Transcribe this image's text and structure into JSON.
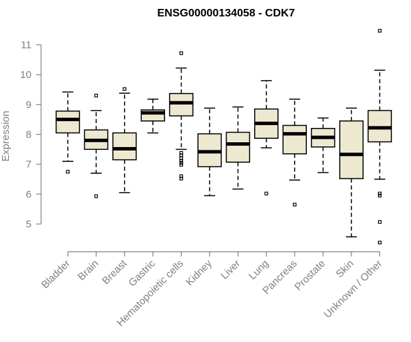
{
  "chart_data": {
    "type": "box",
    "title": "ENSG00000134058 - CDK7",
    "ylabel": "Expression",
    "ylim": [
      4.1,
      11.5
    ],
    "yticks": [
      5,
      6,
      7,
      8,
      9,
      10,
      11
    ],
    "categories": [
      "Bladder",
      "Brain",
      "Breast",
      "Gastric",
      "Hematopoietic cells",
      "Kidney",
      "Liver",
      "Lung",
      "Pancreas",
      "Prostate",
      "Skin",
      "Unknown / Other"
    ],
    "box_fill": "#ede8d0",
    "boxes": [
      {
        "q1": 8.05,
        "median": 8.5,
        "q3": 8.78,
        "whisker_low": 7.1,
        "whisker_high": 9.42,
        "outliers": [
          6.75
        ]
      },
      {
        "q1": 7.5,
        "median": 7.8,
        "q3": 8.15,
        "whisker_low": 6.7,
        "whisker_high": 8.8,
        "outliers": [
          9.3,
          5.93
        ]
      },
      {
        "q1": 7.15,
        "median": 7.52,
        "q3": 8.05,
        "whisker_low": 6.05,
        "whisker_high": 9.38,
        "outliers": [
          9.52
        ]
      },
      {
        "q1": 8.45,
        "median": 8.72,
        "q3": 8.82,
        "whisker_low": 8.05,
        "whisker_high": 9.18,
        "outliers": []
      },
      {
        "q1": 8.62,
        "median": 9.06,
        "q3": 9.37,
        "whisker_low": 7.5,
        "whisker_high": 10.22,
        "outliers": [
          10.72,
          7.38,
          7.3,
          7.2,
          7.12,
          7.05,
          6.98,
          6.6,
          6.52
        ]
      },
      {
        "q1": 6.92,
        "median": 7.42,
        "q3": 8.02,
        "whisker_low": 5.95,
        "whisker_high": 8.88,
        "outliers": []
      },
      {
        "q1": 7.07,
        "median": 7.68,
        "q3": 8.07,
        "whisker_low": 6.17,
        "whisker_high": 8.92,
        "outliers": []
      },
      {
        "q1": 7.87,
        "median": 8.37,
        "q3": 8.85,
        "whisker_low": 7.55,
        "whisker_high": 9.8,
        "outliers": [
          6.02
        ]
      },
      {
        "q1": 7.35,
        "median": 8.02,
        "q3": 8.3,
        "whisker_low": 6.47,
        "whisker_high": 9.18,
        "outliers": [
          5.65
        ]
      },
      {
        "q1": 7.58,
        "median": 7.9,
        "q3": 8.2,
        "whisker_low": 6.72,
        "whisker_high": 8.55,
        "outliers": []
      },
      {
        "q1": 6.52,
        "median": 7.33,
        "q3": 8.45,
        "whisker_low": 4.57,
        "whisker_high": 8.88,
        "outliers": []
      },
      {
        "q1": 7.75,
        "median": 8.22,
        "q3": 8.8,
        "whisker_low": 6.5,
        "whisker_high": 10.15,
        "outliers": [
          11.47,
          6.02,
          5.95,
          5.07,
          4.38
        ]
      }
    ]
  }
}
